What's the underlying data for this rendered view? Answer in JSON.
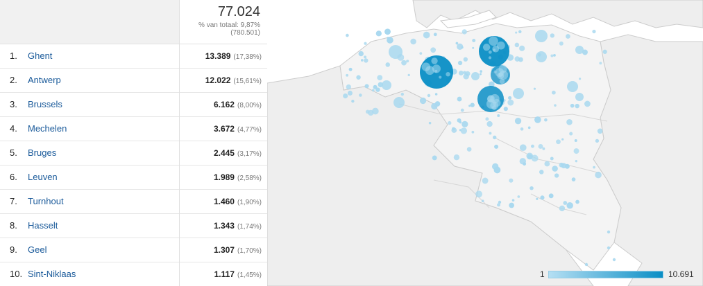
{
  "header": {
    "total_value": "77.024",
    "total_pct": "% van totaal: 9,87%",
    "total_sub": "(780.501)"
  },
  "rows": [
    {
      "rank": "1.",
      "city": "Ghent",
      "value": "13.389",
      "pct": "(17,38%)"
    },
    {
      "rank": "2.",
      "city": "Antwerp",
      "value": "12.022",
      "pct": "(15,61%)"
    },
    {
      "rank": "3.",
      "city": "Brussels",
      "value": "6.162",
      "pct": "(8,00%)"
    },
    {
      "rank": "4.",
      "city": "Mechelen",
      "value": "3.672",
      "pct": "(4,77%)"
    },
    {
      "rank": "5.",
      "city": "Bruges",
      "value": "2.445",
      "pct": "(3,17%)"
    },
    {
      "rank": "6.",
      "city": "Leuven",
      "value": "1.989",
      "pct": "(2,58%)"
    },
    {
      "rank": "7.",
      "city": "Turnhout",
      "value": "1.460",
      "pct": "(1,90%)"
    },
    {
      "rank": "8.",
      "city": "Hasselt",
      "value": "1.343",
      "pct": "(1,74%)"
    },
    {
      "rank": "9.",
      "city": "Geel",
      "value": "1.307",
      "pct": "(1,70%)"
    },
    {
      "rank": "10.",
      "city": "Sint-Niklaas",
      "value": "1.117",
      "pct": "(1,45%)"
    }
  ],
  "legend": {
    "min": "1",
    "max": "10.691"
  },
  "colors": {
    "bubble_dark": "#0a8ec5",
    "bubble_light": "#a8d8ef",
    "map_land": "#eeeeee"
  }
}
